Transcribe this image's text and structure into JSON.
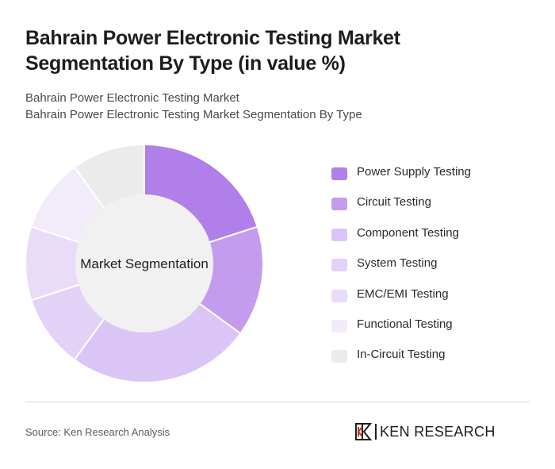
{
  "header": {
    "title": "Bahrain Power Electronic Testing Market Segmentation By Type (in value %)",
    "subtitle_line1": "Bahrain Power Electronic Testing Market",
    "subtitle_line2": "Bahrain Power Electronic Testing Market Segmentation By Type"
  },
  "chart_data": {
    "type": "pie",
    "donut": true,
    "center_label": "Market Segmentation",
    "categories": [
      "Power Supply Testing",
      "Circuit Testing",
      "Component Testing",
      "System Testing",
      "EMC/EMI Testing",
      "Functional Testing",
      "In-Circuit Testing"
    ],
    "values": [
      20,
      15,
      25,
      10,
      10,
      10,
      10
    ],
    "colors": [
      "#b07fe9",
      "#c49cee",
      "#dbc4f6",
      "#e3d2f7",
      "#e9dcf8",
      "#f1ebfa",
      "#ebebeb"
    ],
    "legend_position": "right"
  },
  "footer": {
    "source": "Source: Ken Research Analysis",
    "logo_text": "KEN RESEARCH"
  }
}
